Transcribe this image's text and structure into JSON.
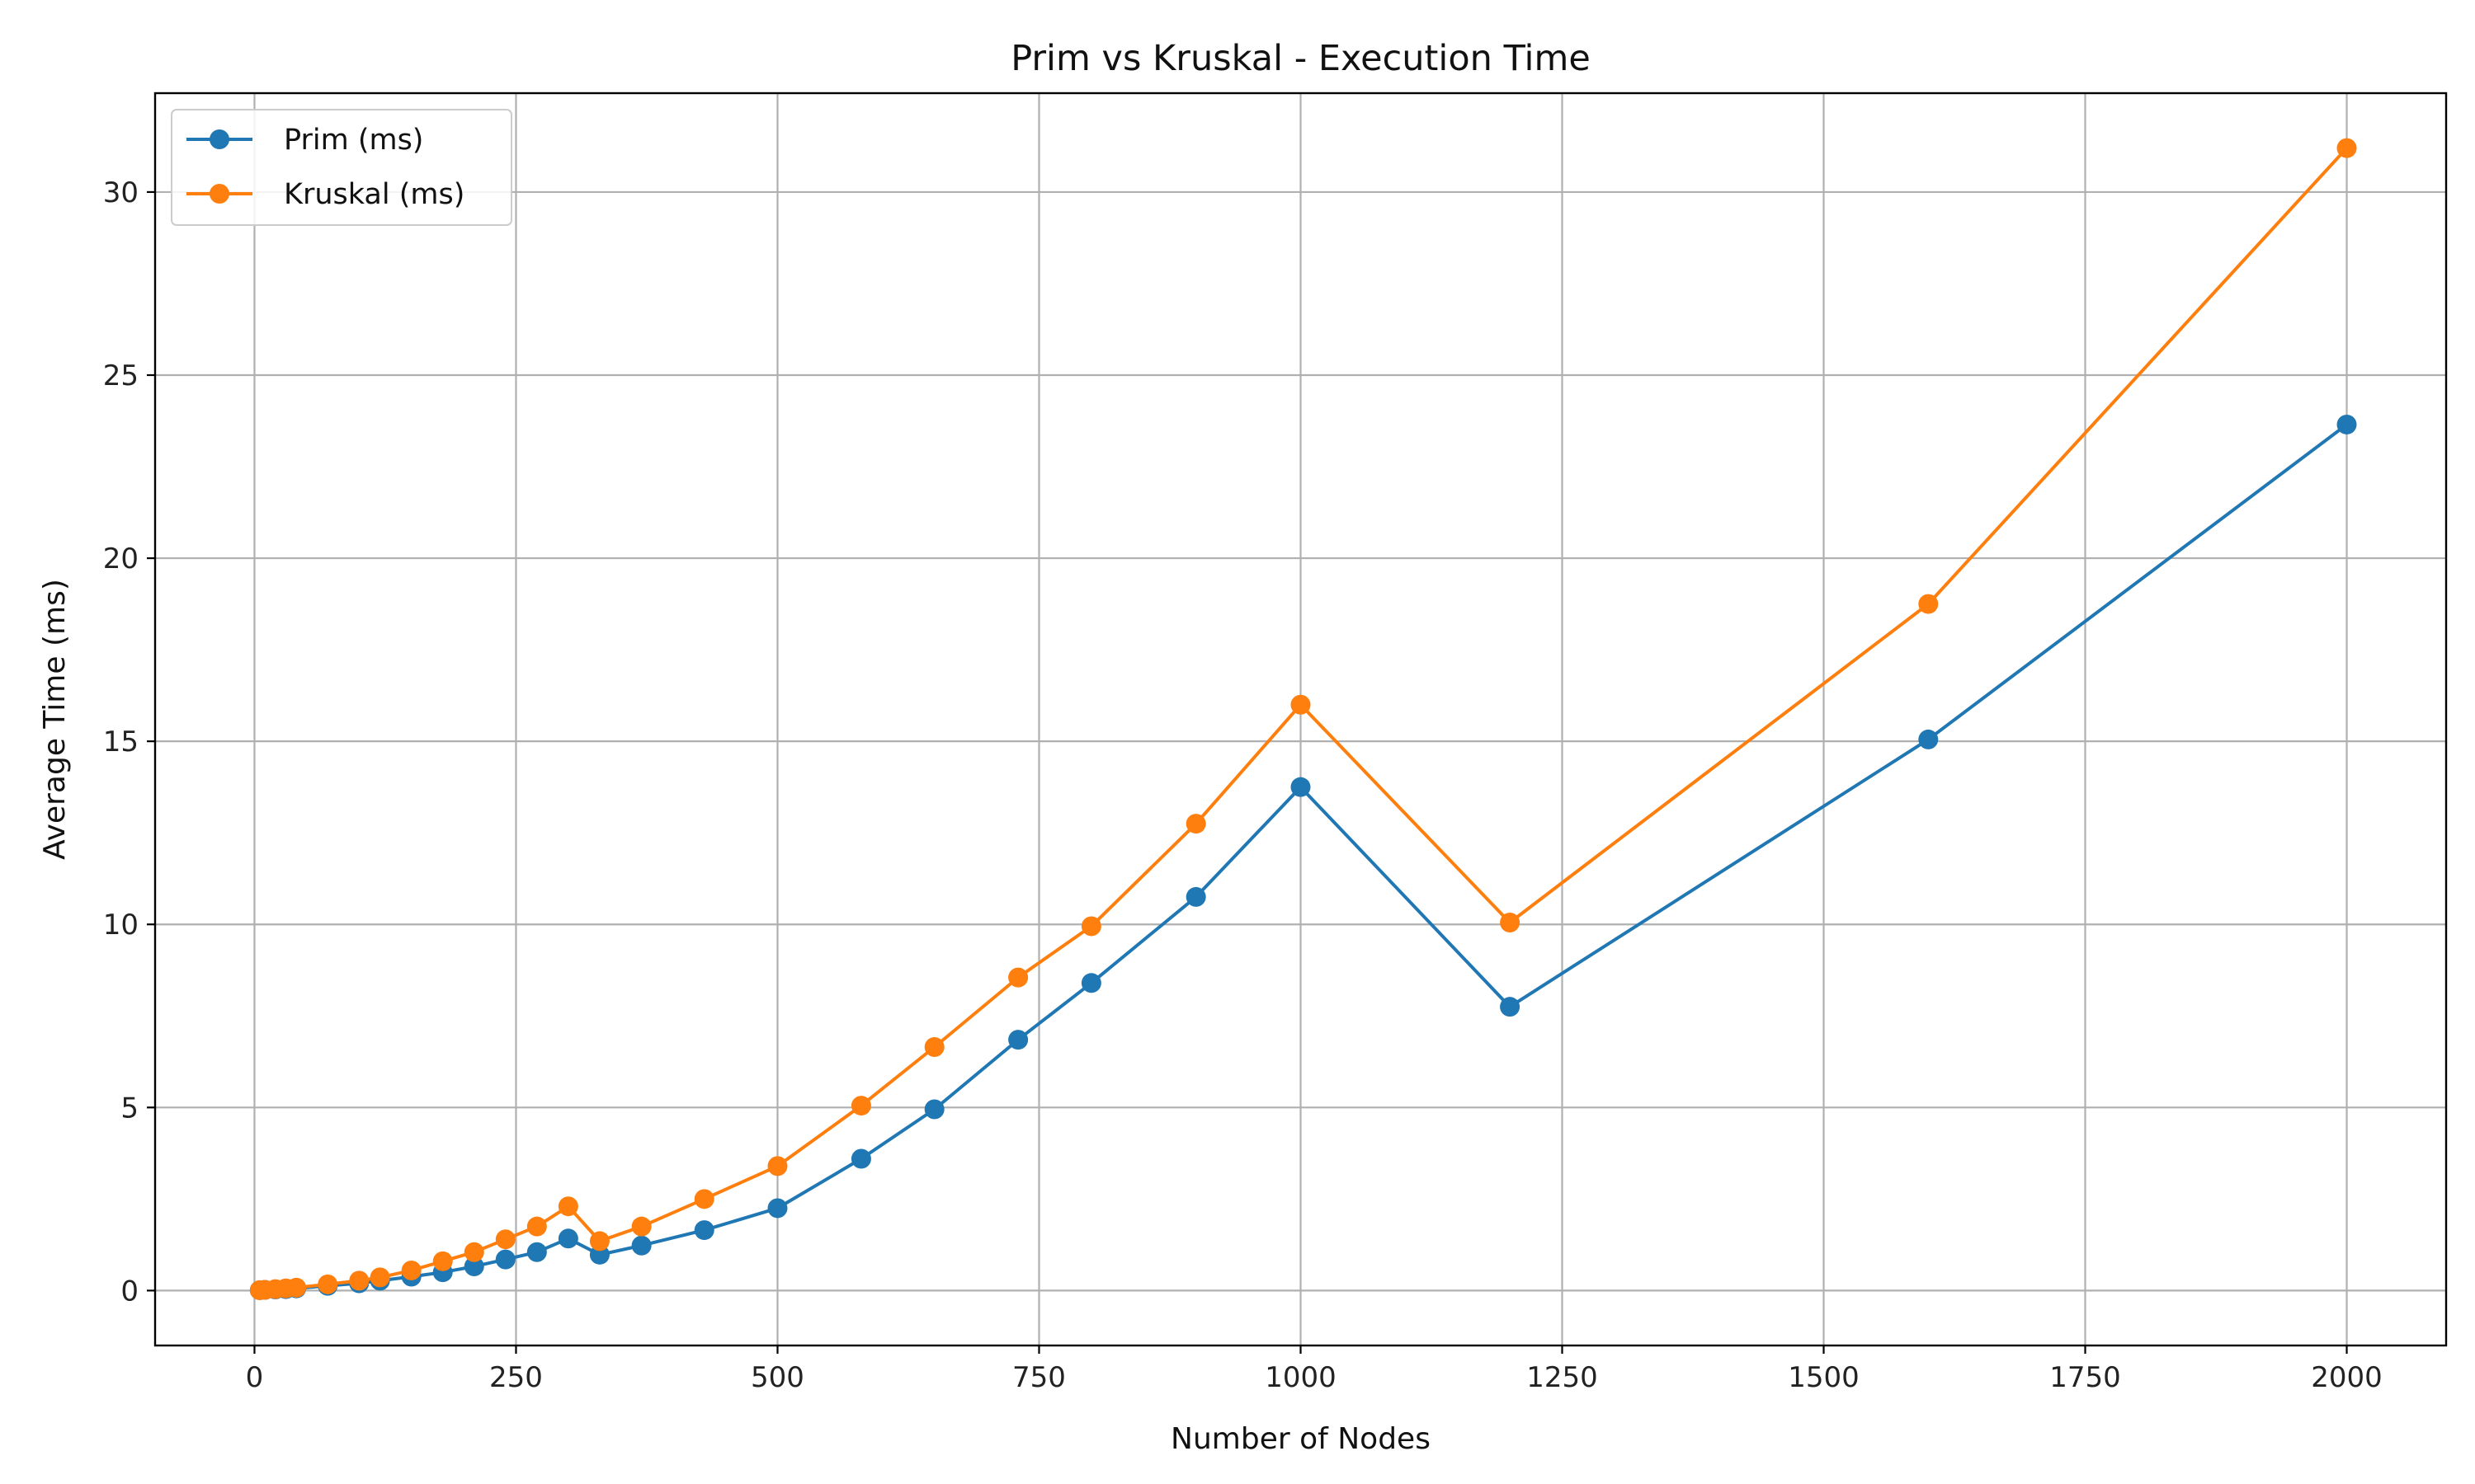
{
  "chart_data": {
    "type": "line",
    "title": "Prim vs Kruskal - Execution Time",
    "xlabel": "Number of Nodes",
    "ylabel": "Average Time (ms)",
    "xlim": [
      -95,
      2095
    ],
    "ylim": [
      -1.5,
      32.7
    ],
    "xticks": [
      0,
      250,
      500,
      750,
      1000,
      1250,
      1500,
      1750,
      2000
    ],
    "yticks": [
      0,
      5,
      10,
      15,
      20,
      25,
      30
    ],
    "grid": true,
    "legend_position": "top-left",
    "x": [
      5,
      10,
      20,
      30,
      40,
      70,
      100,
      120,
      150,
      180,
      210,
      240,
      270,
      300,
      330,
      370,
      430,
      500,
      580,
      650,
      730,
      800,
      900,
      1000,
      1200,
      1600,
      2000
    ],
    "series": [
      {
        "name": "Prim (ms)",
        "color": "#1f77b4",
        "values": [
          0.01,
          0.02,
          0.03,
          0.04,
          0.06,
          0.13,
          0.2,
          0.27,
          0.38,
          0.5,
          0.66,
          0.85,
          1.05,
          1.42,
          0.98,
          1.23,
          1.65,
          2.25,
          3.6,
          4.95,
          6.85,
          8.4,
          10.75,
          13.75,
          7.75,
          15.05,
          23.65
        ]
      },
      {
        "name": "Kruskal (ms)",
        "color": "#ff7f0e",
        "values": [
          0.01,
          0.02,
          0.04,
          0.06,
          0.08,
          0.17,
          0.27,
          0.36,
          0.55,
          0.8,
          1.05,
          1.4,
          1.75,
          2.3,
          1.35,
          1.75,
          2.5,
          3.4,
          5.05,
          6.65,
          8.55,
          9.95,
          12.75,
          16.0,
          10.05,
          18.75,
          31.2
        ]
      }
    ]
  }
}
